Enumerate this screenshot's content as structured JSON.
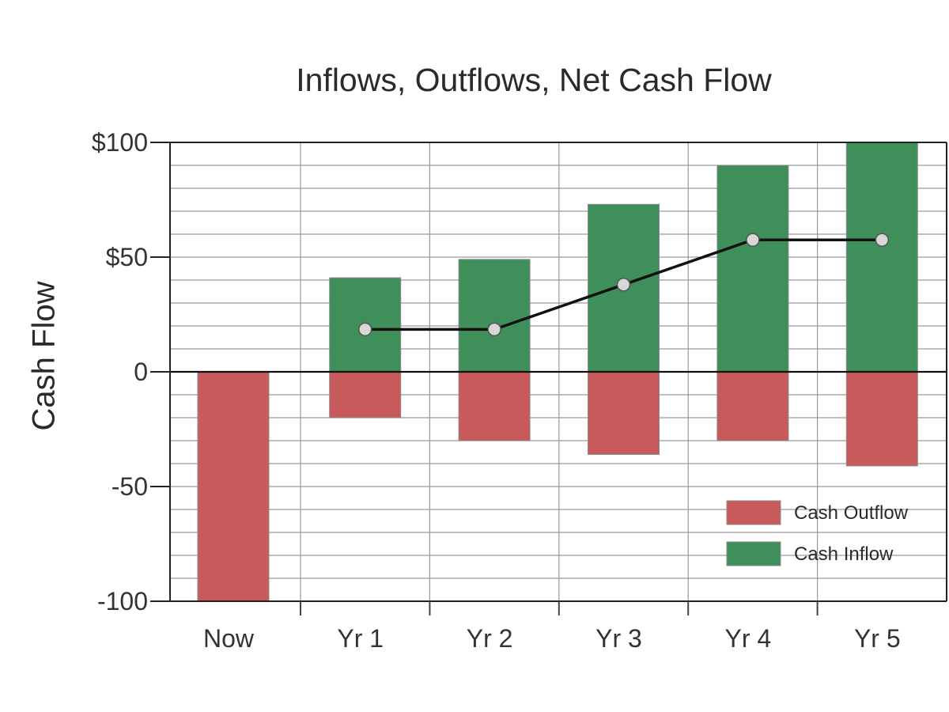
{
  "chart_data": {
    "type": "bar",
    "title": "Inflows, Outflows, Net Cash Flow",
    "xlabel": "",
    "ylabel": "Cash Flow",
    "categories": [
      "Now",
      "Yr 1",
      "Yr 2",
      "Yr 3",
      "Yr 4",
      "Yr 5"
    ],
    "ylim": [
      -100,
      100
    ],
    "yticks": [
      {
        "value": 100,
        "label": "$100"
      },
      {
        "value": 50,
        "label": "$50"
      },
      {
        "value": 0,
        "label": "0"
      },
      {
        "value": -50,
        "label": "-50"
      },
      {
        "value": -100,
        "label": "-100"
      }
    ],
    "series": [
      {
        "name": "Cash Outflow",
        "kind": "bar",
        "color": "#c95a5c",
        "values": [
          -100,
          -20,
          -30,
          -36,
          -30,
          -41
        ]
      },
      {
        "name": "Cash Inflow",
        "kind": "bar",
        "color": "#3f8f5a",
        "values": [
          0,
          41,
          49,
          73,
          90,
          100
        ]
      },
      {
        "kind": "line",
        "color": "#111111",
        "values": [
          null,
          18.5,
          18.5,
          38,
          57.5,
          57.5
        ]
      }
    ],
    "grid": true,
    "legend": {
      "position": "bottom-right",
      "entries": [
        "Cash Outflow",
        "Cash Inflow"
      ]
    }
  }
}
